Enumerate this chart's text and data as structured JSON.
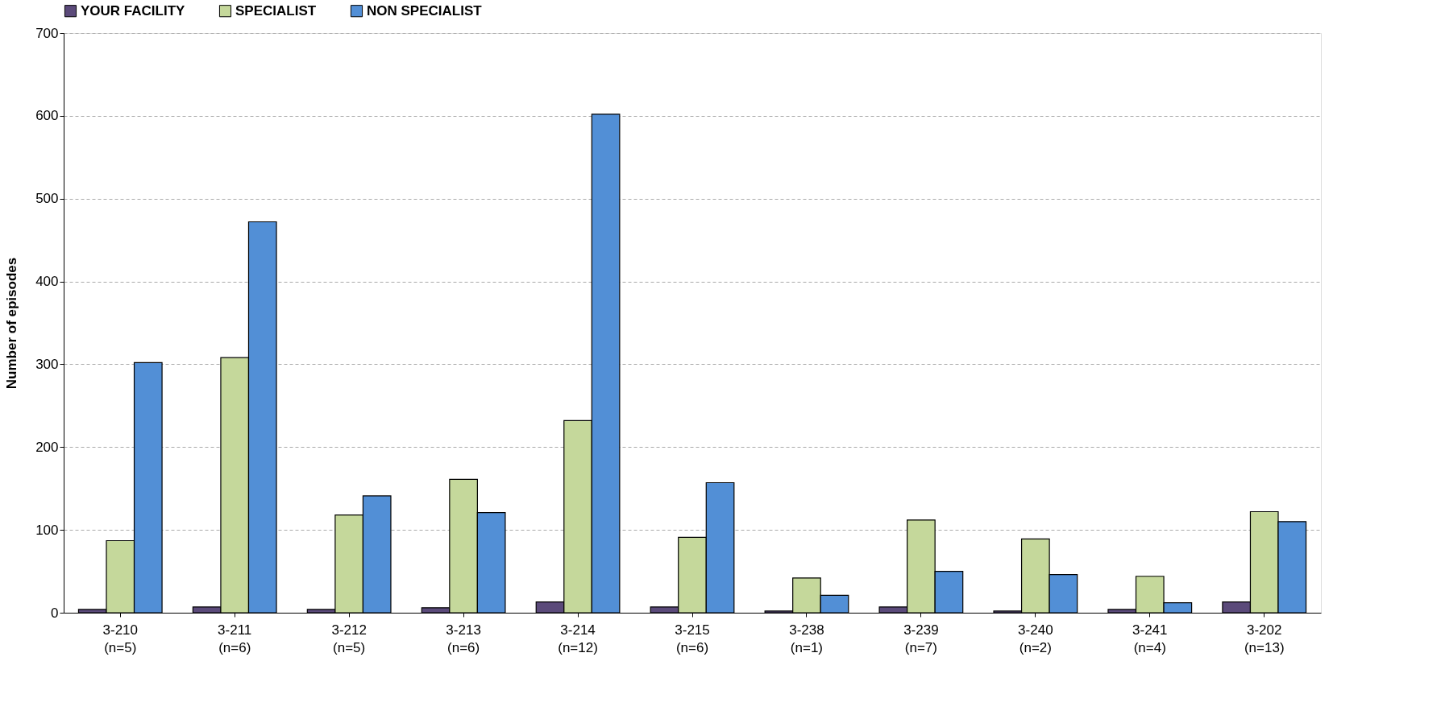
{
  "chart_data": {
    "type": "bar",
    "ylabel": "Number of episodes",
    "categories": [
      "3-210\n(n=5)",
      "3-211\n(n=6)",
      "3-212\n(n=5)",
      "3-213\n(n=6)",
      "3-214\n(n=12)",
      "3-215\n(n=6)",
      "3-238\n(n=1)",
      "3-239\n(n=7)",
      "3-240\n(n=2)",
      "3-241\n(n=4)",
      "3-202\n(n=13)"
    ],
    "series": [
      {
        "name": "YOUR FACILITY",
        "color": "#5b4a7a",
        "values": [
          4,
          7,
          4,
          6,
          13,
          7,
          2,
          7,
          2,
          4,
          13
        ]
      },
      {
        "name": "SPECIALIST",
        "color": "#c5d89b",
        "values": [
          87,
          308,
          118,
          161,
          232,
          91,
          42,
          112,
          89,
          44,
          122
        ]
      },
      {
        "name": "NON SPECIALIST",
        "color": "#528fd6",
        "values": [
          302,
          472,
          141,
          121,
          602,
          157,
          21,
          50,
          46,
          12,
          110
        ]
      }
    ],
    "ylim": [
      0,
      700
    ],
    "yticks": [
      0,
      100,
      200,
      300,
      400,
      500,
      600,
      700
    ],
    "grid": "y",
    "legend": "top"
  }
}
